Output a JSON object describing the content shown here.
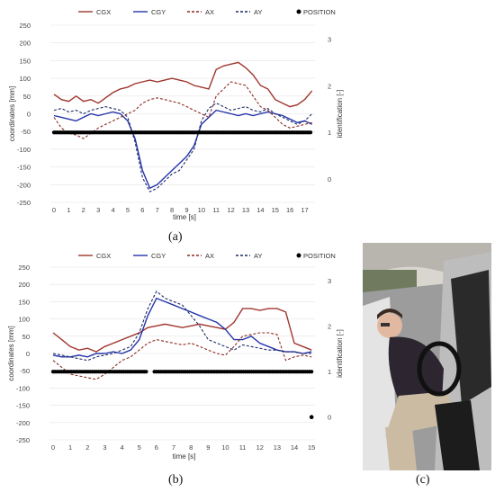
{
  "panel_labels": {
    "a": "(a)",
    "b": "(b)",
    "c": "(c)"
  },
  "colors": {
    "CGX": "#a0362e",
    "CGY": "#2434a8",
    "AX": "#8b2c24",
    "AY": "#1e2a66",
    "POSITION": "#000000"
  },
  "chart_data": [
    {
      "type": "line",
      "panel": "a",
      "title": "",
      "xlabel": "time [s]",
      "ylabel": "coordinates [mm]",
      "ylabel_right": "identification [-]",
      "xlim": [
        0,
        17.7
      ],
      "ylim": [
        -250,
        250
      ],
      "ylim_right": [
        -0.5,
        3.3
      ],
      "x_ticks": [
        0,
        1,
        2,
        3,
        4,
        5,
        6,
        7,
        8,
        9,
        10,
        11,
        12,
        13,
        14,
        15,
        16,
        17
      ],
      "y_ticks": [
        250,
        200,
        150,
        100,
        50,
        0,
        -50,
        -100,
        -150,
        -200,
        -250
      ],
      "y_ticks_right": [
        3,
        2,
        1,
        0
      ],
      "legend_position": "top",
      "grid": true,
      "series": [
        {
          "name": "CGX",
          "style": "solid",
          "x": [
            0,
            0.5,
            1,
            1.5,
            2,
            2.5,
            3,
            3.5,
            4,
            4.5,
            5,
            5.5,
            6,
            6.5,
            7,
            7.5,
            8,
            8.5,
            9,
            9.5,
            10,
            10.5,
            11,
            11.5,
            12,
            12.5,
            13,
            13.5,
            14,
            14.5,
            15,
            15.5,
            16,
            16.5,
            17,
            17.5
          ],
          "y": [
            55,
            40,
            35,
            50,
            35,
            40,
            30,
            45,
            60,
            70,
            75,
            85,
            90,
            95,
            90,
            95,
            100,
            95,
            90,
            80,
            75,
            70,
            125,
            135,
            140,
            145,
            130,
            110,
            80,
            70,
            40,
            30,
            20,
            25,
            40,
            65
          ]
        },
        {
          "name": "CGY",
          "style": "solid",
          "x": [
            0,
            0.5,
            1,
            1.5,
            2,
            2.5,
            3,
            3.5,
            4,
            4.5,
            5,
            5.5,
            6,
            6.5,
            7,
            7.5,
            8,
            8.5,
            9,
            9.5,
            10,
            10.5,
            11,
            11.5,
            12,
            12.5,
            13,
            13.5,
            14,
            14.5,
            15,
            15.5,
            16,
            16.5,
            17,
            17.5
          ],
          "y": [
            -5,
            -10,
            -15,
            -20,
            -10,
            0,
            -5,
            0,
            5,
            0,
            -20,
            -70,
            -160,
            -210,
            -200,
            -180,
            -160,
            -140,
            -120,
            -90,
            -30,
            -10,
            10,
            5,
            0,
            -5,
            0,
            -5,
            0,
            5,
            0,
            -5,
            -15,
            -25,
            -20,
            -30
          ]
        },
        {
          "name": "AX",
          "style": "dashed",
          "x": [
            0,
            0.5,
            1,
            1.5,
            2,
            2.5,
            3,
            3.5,
            4,
            4.5,
            5,
            5.5,
            6,
            6.5,
            7,
            7.5,
            8,
            8.5,
            9,
            9.5,
            10,
            10.5,
            11,
            11.5,
            12,
            12.5,
            13,
            13.5,
            14,
            14.5,
            15,
            15.5,
            16,
            16.5,
            17,
            17.5
          ],
          "y": [
            -10,
            -40,
            -55,
            -60,
            -70,
            -55,
            -40,
            -30,
            -20,
            -10,
            0,
            10,
            30,
            40,
            45,
            40,
            35,
            30,
            20,
            10,
            0,
            -10,
            50,
            70,
            90,
            85,
            80,
            50,
            20,
            10,
            -10,
            -30,
            -40,
            -35,
            -30,
            -25
          ]
        },
        {
          "name": "AY",
          "style": "dashed",
          "x": [
            0,
            0.5,
            1,
            1.5,
            2,
            2.5,
            3,
            3.5,
            4,
            4.5,
            5,
            5.5,
            6,
            6.5,
            7,
            7.5,
            8,
            8.5,
            9,
            9.5,
            10,
            10.5,
            11,
            11.5,
            12,
            12.5,
            13,
            13.5,
            14,
            14.5,
            15,
            15.5,
            16,
            16.5,
            17,
            17.5
          ],
          "y": [
            10,
            15,
            5,
            10,
            0,
            10,
            15,
            20,
            15,
            10,
            -10,
            -80,
            -180,
            -220,
            -210,
            -190,
            -170,
            -160,
            -130,
            -100,
            -20,
            15,
            30,
            20,
            10,
            15,
            20,
            10,
            5,
            15,
            0,
            -10,
            -20,
            -30,
            -20,
            0
          ]
        },
        {
          "name": "POSITION",
          "style": "marker",
          "x_range": [
            0,
            17.5
          ],
          "identification": 1
        }
      ]
    },
    {
      "type": "line",
      "panel": "b",
      "title": "",
      "xlabel": "time [s]",
      "ylabel": "coordinates [mm]",
      "ylabel_right": "identification [-]",
      "xlim": [
        0,
        15.2
      ],
      "ylim": [
        -250,
        250
      ],
      "ylim_right": [
        -0.5,
        3.3
      ],
      "x_ticks": [
        0,
        1,
        2,
        3,
        4,
        5,
        6,
        7,
        8,
        9,
        10,
        11,
        12,
        13,
        14,
        15
      ],
      "y_ticks": [
        250,
        200,
        150,
        100,
        50,
        0,
        -50,
        -100,
        -150,
        -200,
        -250
      ],
      "y_ticks_right": [
        3,
        2,
        1,
        0
      ],
      "legend_position": "top",
      "grid": true,
      "series": [
        {
          "name": "CGX",
          "style": "solid",
          "x": [
            0,
            0.5,
            1,
            1.5,
            2,
            2.5,
            3,
            3.5,
            4,
            4.5,
            5,
            5.5,
            6,
            6.5,
            7,
            7.5,
            8,
            8.5,
            9,
            9.5,
            10,
            10.5,
            11,
            11.5,
            12,
            12.5,
            13,
            13.5,
            14,
            14.5,
            15
          ],
          "y": [
            60,
            40,
            20,
            10,
            15,
            5,
            20,
            30,
            40,
            50,
            60,
            75,
            80,
            85,
            80,
            75,
            80,
            85,
            80,
            75,
            70,
            90,
            130,
            130,
            125,
            130,
            130,
            120,
            30,
            20,
            10
          ]
        },
        {
          "name": "CGY",
          "style": "solid",
          "x": [
            0,
            0.5,
            1,
            1.5,
            2,
            2.5,
            3,
            3.5,
            4,
            4.5,
            5,
            5.5,
            6,
            6.5,
            7,
            7.5,
            8,
            8.5,
            9,
            9.5,
            10,
            10.5,
            11,
            11.5,
            12,
            12.5,
            13,
            13.5,
            14,
            14.5,
            15
          ],
          "y": [
            -5,
            -10,
            -10,
            -5,
            -10,
            0,
            0,
            5,
            0,
            10,
            40,
            110,
            160,
            150,
            140,
            130,
            120,
            110,
            100,
            90,
            70,
            40,
            40,
            50,
            30,
            20,
            10,
            5,
            5,
            0,
            5
          ]
        },
        {
          "name": "AX",
          "style": "dashed",
          "x": [
            0,
            0.5,
            1,
            1.5,
            2,
            2.5,
            3,
            3.5,
            4,
            4.5,
            5,
            5.5,
            6,
            6.5,
            7,
            7.5,
            8,
            8.5,
            9,
            9.5,
            10,
            10.5,
            11,
            11.5,
            12,
            12.5,
            13,
            13.5,
            14,
            14.5,
            15
          ],
          "y": [
            -20,
            -40,
            -60,
            -65,
            -70,
            -75,
            -60,
            -40,
            -20,
            -10,
            10,
            30,
            40,
            35,
            30,
            25,
            30,
            20,
            10,
            0,
            -5,
            20,
            50,
            55,
            60,
            60,
            55,
            -20,
            -10,
            -5,
            -10
          ]
        },
        {
          "name": "AY",
          "style": "dashed",
          "x": [
            0,
            0.5,
            1,
            1.5,
            2,
            2.5,
            3,
            3.5,
            4,
            4.5,
            5,
            5.5,
            6,
            6.5,
            7,
            7.5,
            8,
            8.5,
            9,
            9.5,
            10,
            10.5,
            11,
            11.5,
            12,
            12.5,
            13,
            13.5,
            14,
            14.5,
            15
          ],
          "y": [
            0,
            -5,
            -10,
            -15,
            -20,
            -10,
            -5,
            0,
            10,
            20,
            60,
            130,
            180,
            160,
            150,
            140,
            110,
            80,
            40,
            30,
            20,
            10,
            25,
            20,
            15,
            10,
            10,
            5,
            5,
            0,
            0
          ]
        },
        {
          "name": "POSITION",
          "style": "marker",
          "x_range": [
            0,
            15
          ],
          "identification": 1,
          "gap": [
            5.5,
            5.8
          ],
          "outliers": [
            {
              "x": 15,
              "identification": 0
            }
          ]
        }
      ]
    }
  ],
  "photo": {
    "icon": "person-entering-car"
  }
}
